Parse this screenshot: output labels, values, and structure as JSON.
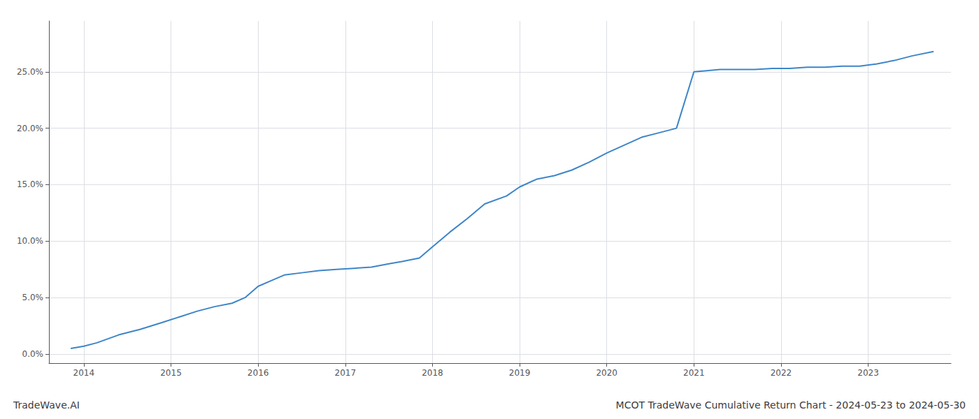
{
  "chart_data": {
    "type": "line",
    "title": "MCOT TradeWave Cumulative Return Chart - 2024-05-23 to 2024-05-30",
    "annotations": [
      "TradeWave.AI"
    ],
    "color": "#3d85c8",
    "grid": true,
    "x": [
      2013.85,
      2014.0,
      2014.15,
      2014.4,
      2014.65,
      2014.9,
      2015.1,
      2015.3,
      2015.5,
      2015.7,
      2015.85,
      2016.0,
      2016.15,
      2016.3,
      2016.5,
      2016.7,
      2016.9,
      2017.1,
      2017.3,
      2017.5,
      2017.65,
      2017.85,
      2018.0,
      2018.2,
      2018.4,
      2018.6,
      2018.85,
      2019.0,
      2019.2,
      2019.4,
      2019.6,
      2019.8,
      2020.0,
      2020.2,
      2020.4,
      2020.6,
      2020.8,
      2021.0,
      2021.15,
      2021.3,
      2021.5,
      2021.7,
      2021.9,
      2022.1,
      2022.3,
      2022.5,
      2022.7,
      2022.9,
      2023.1,
      2023.3,
      2023.5,
      2023.75
    ],
    "values": [
      0.005,
      0.007,
      0.01,
      0.017,
      0.022,
      0.028,
      0.033,
      0.038,
      0.042,
      0.045,
      0.05,
      0.06,
      0.065,
      0.07,
      0.072,
      0.074,
      0.075,
      0.076,
      0.077,
      0.08,
      0.082,
      0.085,
      0.095,
      0.108,
      0.12,
      0.133,
      0.14,
      0.148,
      0.155,
      0.158,
      0.163,
      0.17,
      0.178,
      0.185,
      0.192,
      0.196,
      0.2,
      0.25,
      0.251,
      0.252,
      0.252,
      0.252,
      0.253,
      0.253,
      0.254,
      0.254,
      0.255,
      0.255,
      0.257,
      0.26,
      0.264,
      0.268
    ],
    "xlim": [
      2013.6,
      2023.95
    ],
    "xticks": [
      2014,
      2015,
      2016,
      2017,
      2018,
      2019,
      2020,
      2021,
      2022,
      2023
    ],
    "ylim": [
      -0.008,
      0.295
    ],
    "yticks": [
      {
        "value": 0.0,
        "label": "0.0%"
      },
      {
        "value": 0.05,
        "label": "5.0%"
      },
      {
        "value": 0.1,
        "label": "10.0%"
      },
      {
        "value": 0.15,
        "label": "15.0%"
      },
      {
        "value": 0.2,
        "label": "20.0%"
      },
      {
        "value": 0.25,
        "label": "25.0%"
      }
    ]
  }
}
